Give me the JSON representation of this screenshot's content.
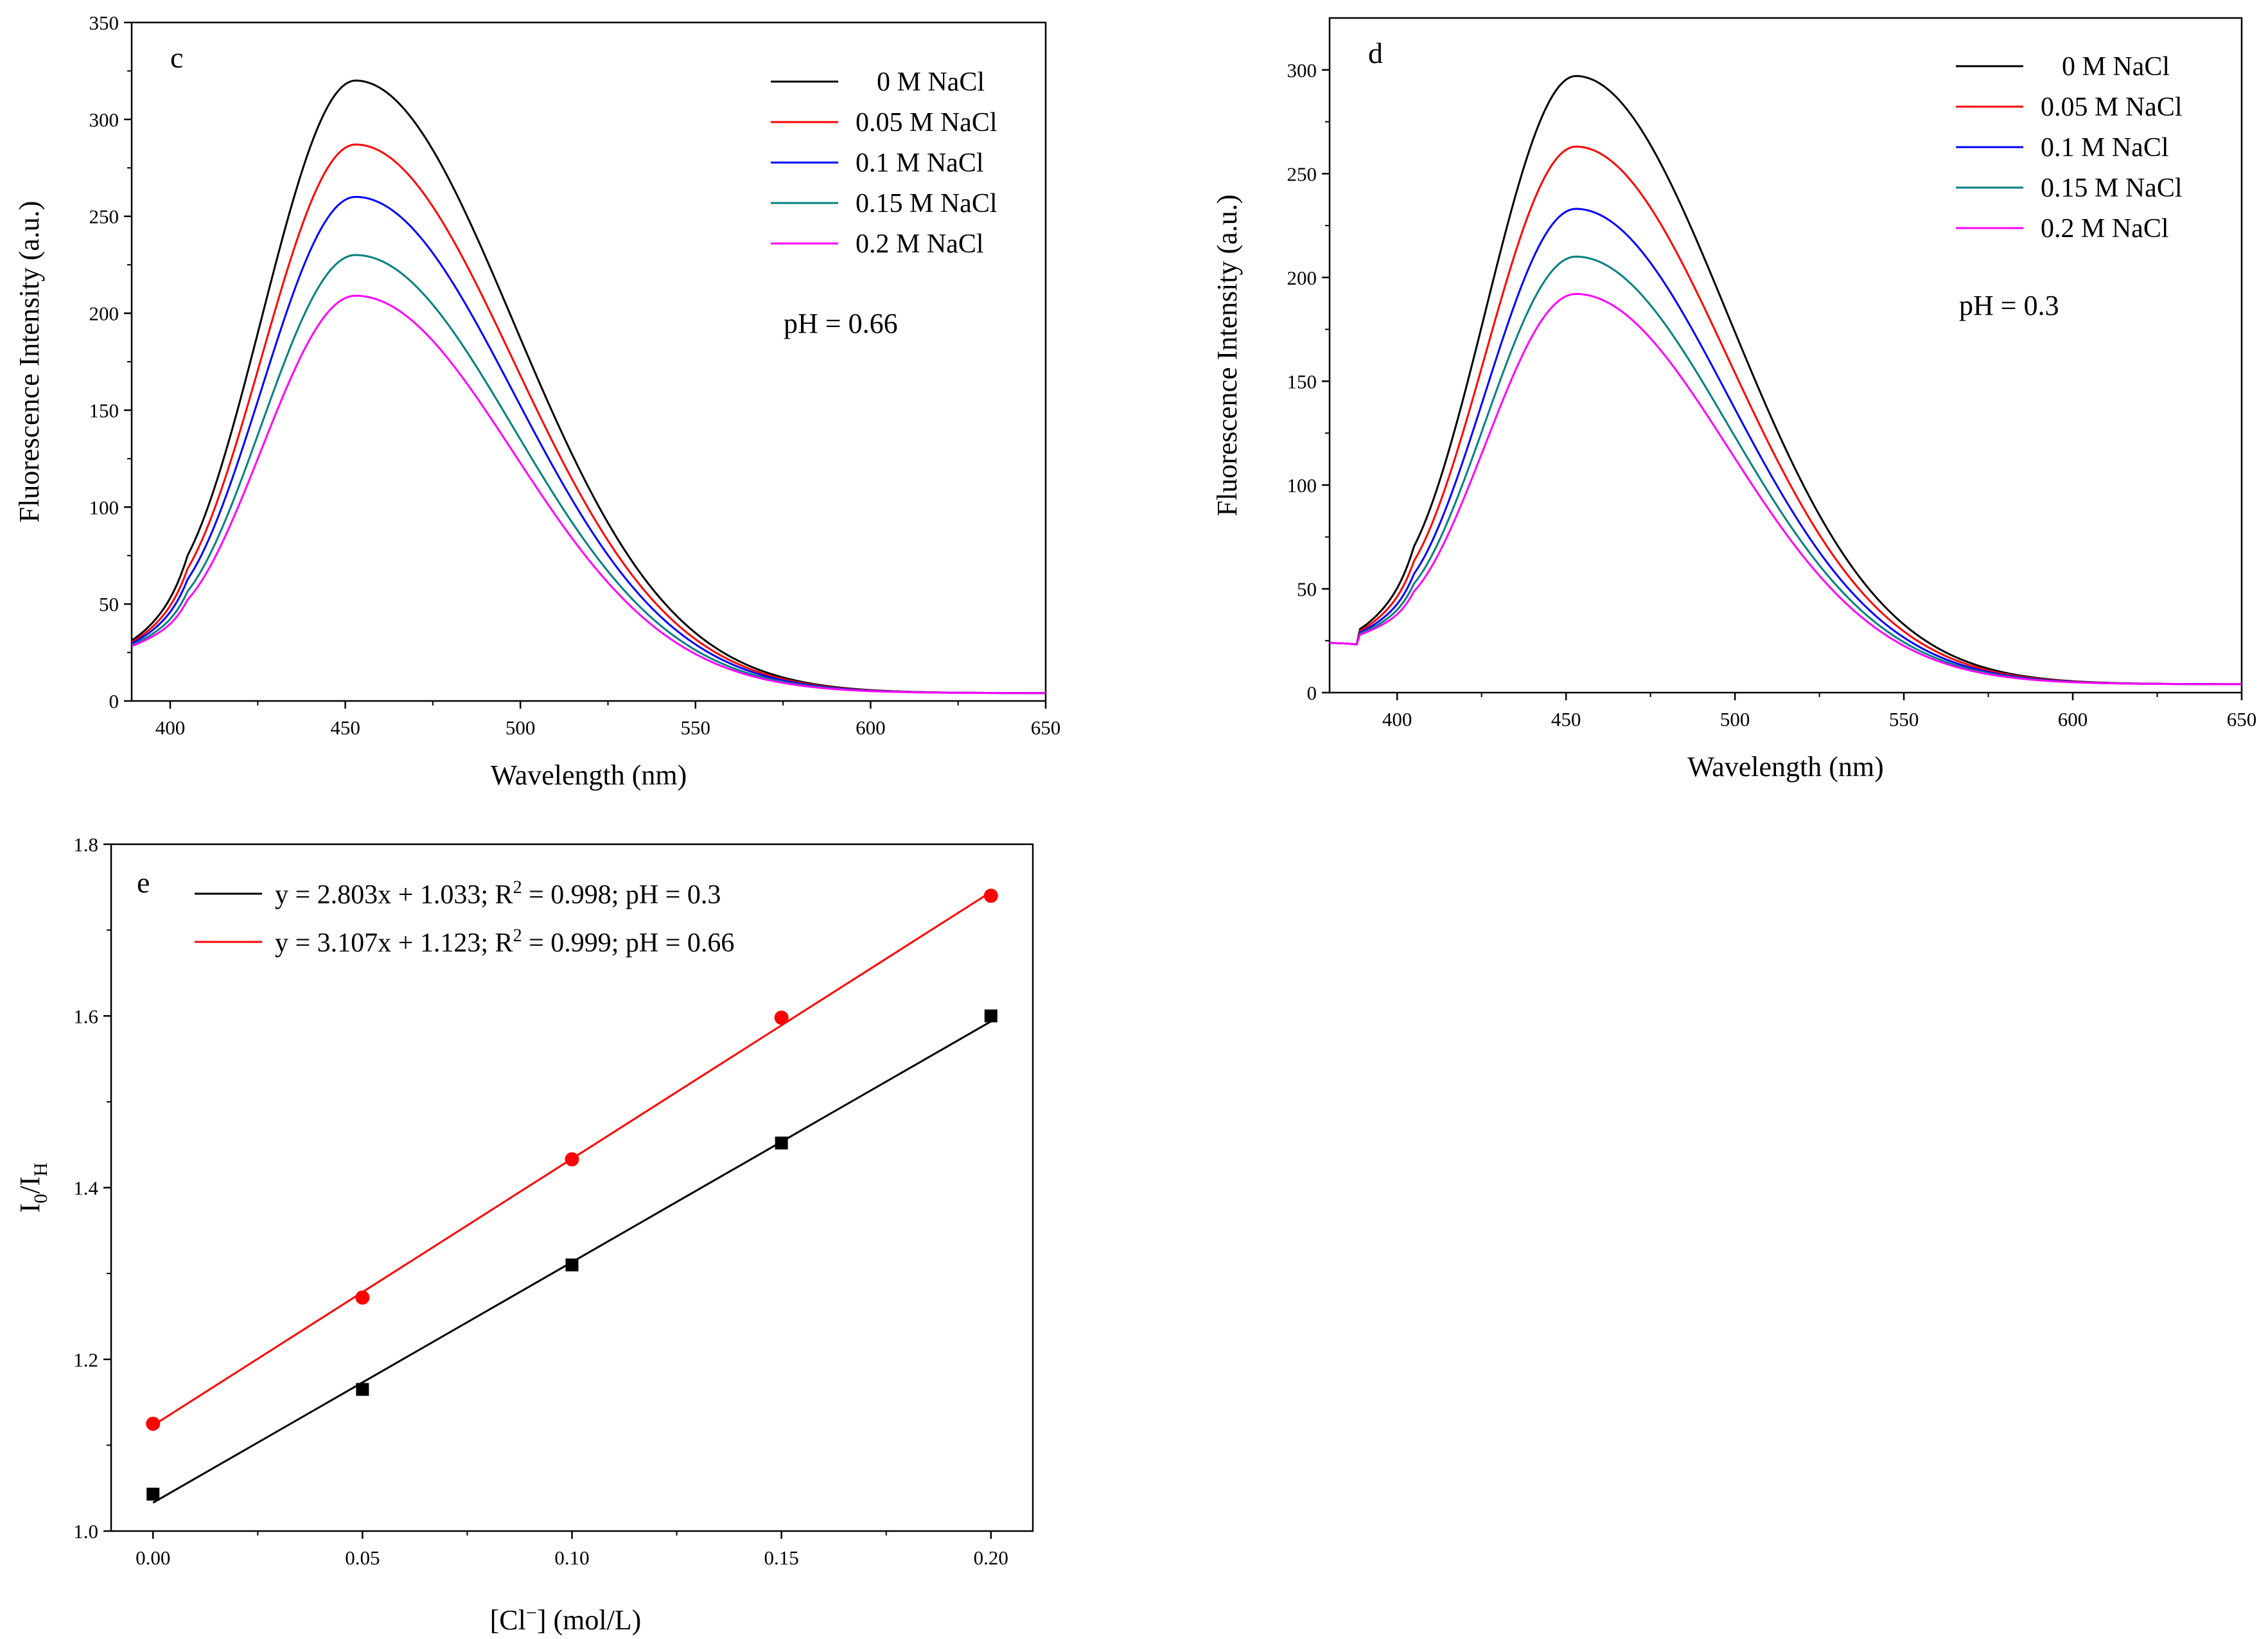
{
  "chart_data": [
    {
      "id": "c",
      "type": "line",
      "panel_label": "c",
      "xlabel": "Wavelength (nm)",
      "ylabel": "Fluorescence Intensity (a.u.)",
      "xlim": [
        389,
        650
      ],
      "ylim": [
        0,
        350
      ],
      "xticks": [
        400,
        450,
        500,
        550,
        600,
        650
      ],
      "yticks": [
        0,
        50,
        100,
        150,
        200,
        250,
        300,
        350
      ],
      "annotation": "pH = 0.66",
      "legend_position": "top-right",
      "peak_x": 453,
      "series": [
        {
          "name": "0 M NaCl",
          "color": "#000000",
          "peak": 319
        },
        {
          "name": "0.05 M NaCl",
          "color": "#ff0000",
          "peak": 286
        },
        {
          "name": "0.1 M NaCl",
          "color": "#0000ff",
          "peak": 259
        },
        {
          "name": "0.15 M NaCl",
          "color": "#008080",
          "peak": 229
        },
        {
          "name": "0.2 M NaCl",
          "color": "#ff00ff",
          "peak": 208
        }
      ]
    },
    {
      "id": "d",
      "type": "line",
      "panel_label": "d",
      "xlabel": "Wavelength (nm)",
      "ylabel": "Fluorescence Intensity (a.u.)",
      "xlim": [
        380,
        650
      ],
      "ylim": [
        0,
        325
      ],
      "xticks": [
        400,
        450,
        500,
        550,
        600,
        650
      ],
      "yticks": [
        0,
        50,
        100,
        150,
        200,
        250,
        300
      ],
      "annotation": "pH = 0.3",
      "legend_position": "top-right",
      "peak_x": 453,
      "series": [
        {
          "name": "0 M NaCl",
          "color": "#000000",
          "peak": 296
        },
        {
          "name": "0.05 M NaCl",
          "color": "#ff0000",
          "peak": 262
        },
        {
          "name": "0.1 M NaCl",
          "color": "#0000ff",
          "peak": 232
        },
        {
          "name": "0.15 M NaCl",
          "color": "#008080",
          "peak": 209
        },
        {
          "name": "0.2 M NaCl",
          "color": "#ff00ff",
          "peak": 191
        }
      ]
    },
    {
      "id": "e",
      "type": "scatter",
      "panel_label": "e",
      "xlabel_main": "[Cl",
      "xlabel_sup": "−",
      "xlabel_tail": "] (mol/L)",
      "ylabel_main": "I",
      "ylabel_sub1": "0",
      "ylabel_mid": "/I",
      "ylabel_sub2": "H",
      "xlim": [
        -0.01,
        0.21
      ],
      "ylim": [
        1.0,
        1.8
      ],
      "xticks": [
        "0.00",
        "0.05",
        "0.10",
        "0.15",
        "0.20"
      ],
      "yticks": [
        "1.0",
        "1.2",
        "1.4",
        "1.6",
        "1.8"
      ],
      "legend_position": "top-left",
      "series": [
        {
          "name": "pH = 0.3",
          "color": "#000000",
          "marker": "square",
          "x": [
            0.0,
            0.05,
            0.1,
            0.15,
            0.2
          ],
          "y": [
            1.043,
            1.165,
            1.31,
            1.452,
            1.6
          ],
          "fit": {
            "slope": 2.803,
            "intercept": 1.033
          },
          "legend_parts": [
            "y = 2.803x + 1.033;  R",
            "2",
            " = 0.998;  pH = 0.3"
          ]
        },
        {
          "name": "pH = 0.66",
          "color": "#ff0000",
          "marker": "circle",
          "x": [
            0.0,
            0.05,
            0.1,
            0.15,
            0.2
          ],
          "y": [
            1.125,
            1.272,
            1.433,
            1.598,
            1.74
          ],
          "fit": {
            "slope": 3.107,
            "intercept": 1.123
          },
          "legend_parts": [
            "y = 3.107x + 1.123;  R",
            "2",
            " = 0.999;  pH = 0.66"
          ]
        }
      ]
    }
  ]
}
